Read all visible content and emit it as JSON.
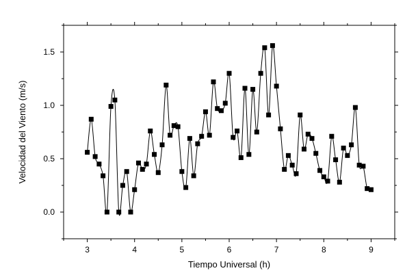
{
  "chart_data": {
    "type": "line",
    "xlabel": "Tiempo Universal (h)",
    "ylabel": "Velocidad del Viento (m/s)",
    "xlim": [
      2.5,
      9.5
    ],
    "ylim": [
      -0.25,
      1.75
    ],
    "xticks": [
      3,
      4,
      5,
      6,
      7,
      8,
      9
    ],
    "xtick_labels": [
      "3",
      "4",
      "5",
      "6",
      "7",
      "8",
      "9"
    ],
    "yticks": [
      0.0,
      0.5,
      1.0,
      1.5
    ],
    "ytick_labels": [
      "0.0",
      "0.5",
      "1.0",
      "1.5"
    ],
    "grid": false,
    "legend": "none",
    "marker": "square",
    "line_style": "smooth",
    "color": "#000000",
    "series": [
      {
        "x": [
          3.0,
          3.083,
          3.167,
          3.25,
          3.333,
          3.417,
          3.5,
          3.583,
          3.667,
          3.75,
          3.833,
          3.917,
          4.0,
          4.083,
          4.167,
          4.25,
          4.333,
          4.417,
          4.5,
          4.583,
          4.667,
          4.75,
          4.833,
          4.917,
          5.0,
          5.083,
          5.167,
          5.25,
          5.333,
          5.417,
          5.5,
          5.583,
          5.667,
          5.75,
          5.833,
          5.917,
          6.0,
          6.083,
          6.167,
          6.25,
          6.333,
          6.417,
          6.5,
          6.583,
          6.667,
          6.75,
          6.833,
          6.917,
          7.0,
          7.083,
          7.167,
          7.25,
          7.333,
          7.417,
          7.5,
          7.583,
          7.667,
          7.75,
          7.833,
          7.917,
          8.0,
          8.083,
          8.167,
          8.25,
          8.333,
          8.417,
          8.5,
          8.583,
          8.667,
          8.75,
          8.833,
          8.917,
          9.0
        ],
        "y": [
          0.56,
          0.87,
          0.52,
          0.45,
          0.34,
          0.0,
          0.99,
          1.05,
          0.0,
          0.25,
          0.38,
          0.0,
          0.21,
          0.46,
          0.4,
          0.45,
          0.76,
          0.54,
          0.37,
          0.63,
          1.19,
          0.72,
          0.81,
          0.8,
          0.38,
          0.23,
          0.69,
          0.34,
          0.64,
          0.71,
          0.94,
          0.72,
          1.22,
          0.97,
          0.95,
          1.02,
          1.3,
          0.7,
          0.76,
          0.51,
          1.16,
          0.54,
          1.15,
          0.75,
          1.3,
          1.54,
          0.91,
          1.56,
          1.18,
          0.78,
          0.4,
          0.53,
          0.44,
          0.36,
          0.91,
          0.59,
          0.73,
          0.69,
          0.55,
          0.39,
          0.33,
          0.29,
          0.71,
          0.49,
          0.28,
          0.6,
          0.53,
          0.63,
          0.98,
          0.44,
          0.43,
          0.22,
          0.21
        ]
      }
    ]
  }
}
